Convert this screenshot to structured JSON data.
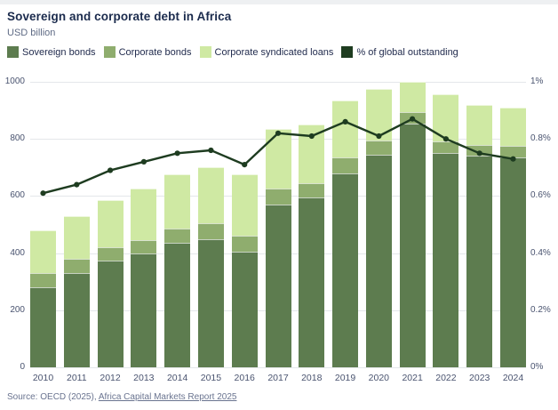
{
  "header": {
    "title": "Sovereign and corporate debt in Africa",
    "subtitle": "USD billion"
  },
  "legend": [
    {
      "label": "Sovereign bonds",
      "color": "#5d7c4f"
    },
    {
      "label": "Corporate bonds",
      "color": "#8fad6e"
    },
    {
      "label": "Corporate syndicated loans",
      "color": "#cfe9a3"
    },
    {
      "label": "% of global outstanding",
      "color": "#1e3c20"
    }
  ],
  "source": {
    "prefix": "Source: OECD (2025), ",
    "link_text": "Africa Capital Markets Report 2025"
  },
  "colors": {
    "sovereign_bonds": "#5d7c4f",
    "corporate_bonds": "#8fad6e",
    "corporate_syndicated_loans": "#cfe9a3",
    "pct_line": "#1e3c20",
    "gridline": "#e4e7ea",
    "title_text": "#1b2b4d",
    "axis_text": "#49536f"
  },
  "chart_data": {
    "type": "bar",
    "subtype": "stacked-bars-with-line",
    "title": "Sovereign and corporate debt in Africa",
    "subtitle": "USD billion",
    "xlabel": "",
    "ylabel_left": "USD billion",
    "ylabel_right": "% of global outstanding",
    "grid": true,
    "legend_position": "top",
    "categories": [
      "2010",
      "2011",
      "2012",
      "2013",
      "2014",
      "2015",
      "2016",
      "2017",
      "2018",
      "2019",
      "2020",
      "2021",
      "2022",
      "2023",
      "2024"
    ],
    "series": [
      {
        "name": "Sovereign bonds",
        "type": "bar",
        "stack": true,
        "color": "#5d7c4f",
        "values": [
          280,
          330,
          375,
          400,
          435,
          450,
          405,
          570,
          595,
          680,
          745,
          855,
          750,
          740,
          735
        ]
      },
      {
        "name": "Corporate bonds",
        "type": "bar",
        "stack": true,
        "color": "#8fad6e",
        "values": [
          50,
          50,
          45,
          45,
          50,
          55,
          55,
          55,
          50,
          55,
          50,
          40,
          40,
          40,
          40
        ]
      },
      {
        "name": "Corporate syndicated loans",
        "type": "bar",
        "stack": true,
        "color": "#cfe9a3",
        "values": [
          150,
          150,
          165,
          180,
          190,
          195,
          215,
          210,
          205,
          200,
          180,
          105,
          165,
          140,
          135
        ]
      },
      {
        "name": "% of global outstanding",
        "type": "line",
        "axis": "right",
        "color": "#1e3c20",
        "values": [
          0.61,
          0.64,
          0.69,
          0.72,
          0.75,
          0.76,
          0.71,
          0.82,
          0.81,
          0.86,
          0.81,
          0.87,
          0.8,
          0.75,
          0.73
        ]
      }
    ],
    "stacked_totals": [
      480,
      530,
      585,
      625,
      675,
      700,
      675,
      835,
      850,
      935,
      975,
      1000,
      955,
      920,
      910
    ],
    "left_axis": {
      "range": [
        0,
        1000
      ],
      "ticks": [
        0,
        200,
        400,
        600,
        800,
        1000
      ]
    },
    "right_axis": {
      "range": [
        0,
        1
      ],
      "ticks": [
        0,
        0.2,
        0.4,
        0.6,
        0.8,
        1
      ],
      "tick_labels": [
        "0%",
        "0.2%",
        "0.4%",
        "0.6%",
        "0.8%",
        "1%"
      ]
    }
  }
}
